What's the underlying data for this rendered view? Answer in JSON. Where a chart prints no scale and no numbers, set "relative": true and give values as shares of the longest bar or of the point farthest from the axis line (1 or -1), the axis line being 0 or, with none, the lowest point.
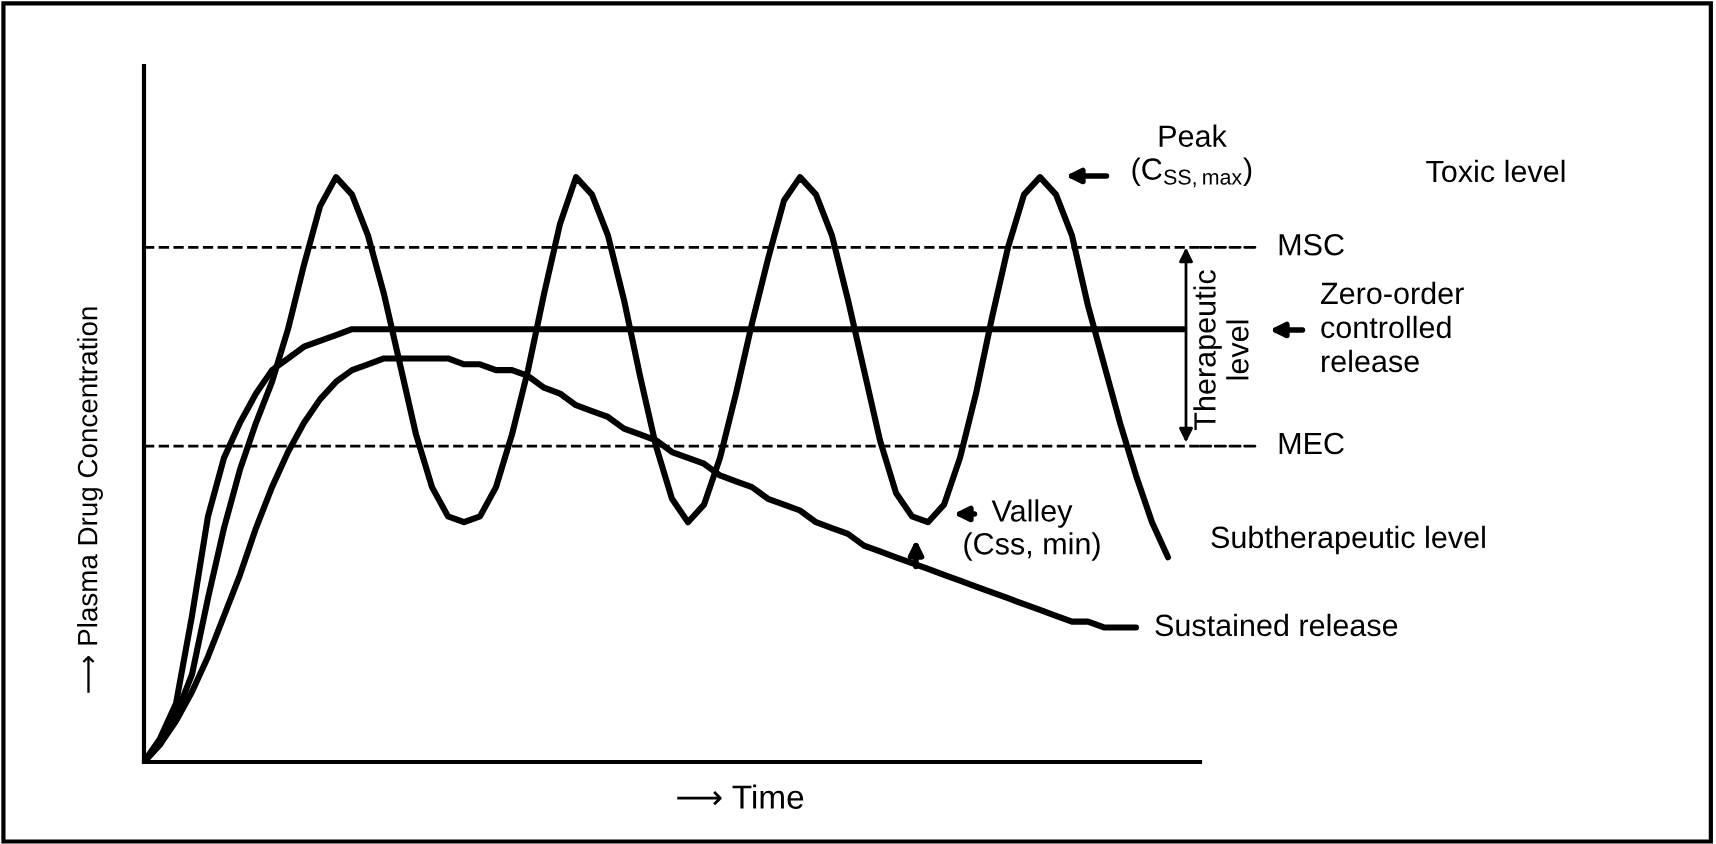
{
  "chart_data": {
    "type": "line",
    "relative": true,
    "xlabel": "⟶ Time",
    "ylabel": "⟶ Plasma Drug Concentration",
    "categories": [
      null,
      null,
      null,
      null,
      null,
      null,
      null,
      null,
      null,
      null,
      null,
      null,
      null,
      null,
      null,
      null,
      null,
      null,
      null,
      null,
      null,
      null,
      null,
      null,
      null,
      null,
      null,
      null,
      null,
      null,
      null,
      null,
      null,
      null,
      null,
      null,
      null,
      null,
      null,
      null,
      null,
      null,
      null,
      null,
      null,
      null,
      null,
      null,
      null,
      null,
      null,
      null,
      null,
      null,
      null,
      null,
      null,
      null,
      null,
      null,
      null,
      null,
      null,
      null,
      null,
      null
    ],
    "series": [
      {
        "name": "Zero-order\ncontrolled\nrelease",
        "color": "#000000",
        "values": [
          0,
          0.04,
          0.1,
          0.25,
          0.42,
          0.52,
          0.58,
          0.63,
          0.67,
          0.69,
          0.71,
          0.72,
          0.73,
          0.74,
          0.74,
          0.74,
          0.74,
          0.74,
          0.74,
          0.74,
          0.74,
          0.74,
          0.74,
          0.74,
          0.74,
          0.74,
          0.74,
          0.74,
          0.74,
          0.74,
          0.74,
          0.74,
          0.74,
          0.74,
          0.74,
          0.74,
          0.74,
          0.74,
          0.74,
          0.74,
          0.74,
          0.74,
          0.74,
          0.74,
          0.74,
          0.74,
          0.74,
          0.74,
          0.74,
          0.74,
          0.74,
          0.74,
          0.74,
          0.74,
          0.74,
          0.74,
          0.74,
          0.74,
          0.74,
          0.74,
          0.74,
          0.74,
          0.74,
          0.74,
          0.74,
          0.74
        ]
      },
      {
        "name": "Sustained release",
        "color": "#000000",
        "values": [
          0,
          0.03,
          0.07,
          0.12,
          0.18,
          0.25,
          0.32,
          0.4,
          0.47,
          0.53,
          0.58,
          0.62,
          0.65,
          0.67,
          0.68,
          0.69,
          0.69,
          0.69,
          0.69,
          0.69,
          0.68,
          0.68,
          0.67,
          0.67,
          0.66,
          0.64,
          0.63,
          0.61,
          0.6,
          0.59,
          0.57,
          0.56,
          0.55,
          0.53,
          0.52,
          0.51,
          0.49,
          0.48,
          0.47,
          0.45,
          0.44,
          0.43,
          0.41,
          0.4,
          0.39,
          0.37,
          0.36,
          0.35,
          0.34,
          0.33,
          0.32,
          0.31,
          0.3,
          0.29,
          0.28,
          0.27,
          0.26,
          0.25,
          0.24,
          0.24,
          0.23,
          0.23,
          0.23,
          null,
          null,
          null
        ]
      },
      {
        "color": "#000000",
        "values": [
          0,
          0.03,
          0.08,
          0.15,
          0.28,
          0.4,
          0.5,
          0.58,
          0.65,
          0.74,
          0.85,
          0.95,
          1.0,
          0.97,
          0.9,
          0.8,
          0.68,
          0.56,
          0.47,
          0.42,
          0.41,
          0.42,
          0.47,
          0.56,
          0.67,
          0.8,
          0.92,
          1.0,
          0.97,
          0.9,
          0.79,
          0.66,
          0.54,
          0.45,
          0.41,
          0.44,
          0.52,
          0.63,
          0.75,
          0.86,
          0.96,
          1.0,
          0.97,
          0.9,
          0.79,
          0.67,
          0.55,
          0.46,
          0.42,
          0.41,
          0.44,
          0.52,
          0.63,
          0.76,
          0.88,
          0.97,
          1.0,
          0.97,
          0.9,
          0.78,
          0.68,
          0.58,
          0.49,
          0.41,
          0.35,
          null
        ]
      }
    ],
    "ref_lines": [
      {
        "axis": "y",
        "value": 0.88,
        "label": "MSC",
        "color": "#000000",
        "line_style": "dashed"
      },
      {
        "axis": "y",
        "value": 0.54,
        "label": "MEC",
        "color": "#000000",
        "line_style": "dashed"
      }
    ],
    "annotations": [
      "Peak\n(C$_{SS,max}$)",
      "Toxic level",
      "Therapeutic\nlevel",
      "Valley\n(Css, min)",
      "Subtherapeutic level"
    ],
    "legend": "right",
    "marker": "none",
    "line_style": "solid"
  }
}
